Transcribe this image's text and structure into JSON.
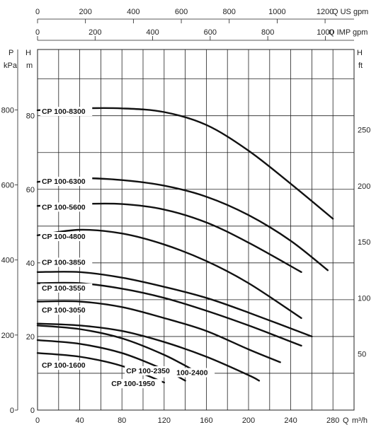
{
  "chart_data": {
    "type": "line",
    "x_axis": {
      "label": "Q m³/h",
      "ticks": [
        0,
        40,
        80,
        120,
        160,
        200,
        240,
        280
      ],
      "range": [
        0,
        300
      ]
    },
    "top_axis_us": {
      "label": "Q US gpm",
      "ticks": [
        0,
        200,
        400,
        600,
        800,
        1000,
        1200
      ]
    },
    "top_axis_imp": {
      "label": "Q IMP gpm",
      "ticks": [
        0,
        200,
        400,
        600,
        800,
        1000
      ]
    },
    "y_axis_m": {
      "label": "H m",
      "unit": "m",
      "ticks": [
        0,
        20,
        40,
        60,
        80
      ],
      "range": [
        0,
        98
      ]
    },
    "y_axis_kpa": {
      "label": "P kPa",
      "unit": "kPa",
      "ticks": [
        0,
        200,
        400,
        600,
        800
      ]
    },
    "y_axis_ft": {
      "label": "H ft",
      "unit": "ft",
      "ticks": [
        50,
        100,
        150,
        200,
        250
      ]
    },
    "series": [
      {
        "name": "CP 100-8300",
        "x": [
          0,
          40,
          80,
          120,
          160,
          200,
          240,
          280
        ],
        "y": [
          81.5,
          82,
          82,
          81,
          77.5,
          70.5,
          61.5,
          52
        ]
      },
      {
        "name": "CP 100-6300",
        "x": [
          0,
          40,
          80,
          120,
          160,
          200,
          240,
          275
        ],
        "y": [
          62,
          63,
          62.5,
          61,
          58,
          53,
          46,
          38
        ]
      },
      {
        "name": "CP 100-5600",
        "x": [
          0,
          40,
          80,
          120,
          160,
          200,
          250
        ],
        "y": [
          55.5,
          56,
          56,
          54.5,
          51,
          45.5,
          37.5
        ]
      },
      {
        "name": "CP 100-4800",
        "x": [
          0,
          40,
          80,
          120,
          160,
          200,
          250
        ],
        "y": [
          47.5,
          49,
          48,
          45,
          40.5,
          34.5,
          25
        ]
      },
      {
        "name": "CP 100-3850",
        "x": [
          0,
          40,
          80,
          120,
          160,
          200,
          260
        ],
        "y": [
          37.5,
          37.5,
          36,
          33.5,
          30.5,
          26.5,
          20
        ]
      },
      {
        "name": "CP 100-3550",
        "x": [
          0,
          40,
          80,
          120,
          160,
          200,
          250
        ],
        "y": [
          34.5,
          34.5,
          33,
          30.5,
          27,
          23,
          17.5
        ]
      },
      {
        "name": "CP 100-3050",
        "x": [
          0,
          40,
          80,
          120,
          160,
          200,
          230
        ],
        "y": [
          29.5,
          29.5,
          28,
          25,
          21.5,
          16.5,
          13
        ]
      },
      {
        "name": "CP 100-2400",
        "x": [
          0,
          40,
          80,
          120,
          160,
          200,
          210
        ],
        "y": [
          23.5,
          23,
          21.5,
          18.5,
          14.5,
          9.5,
          8
        ]
      },
      {
        "name": "CP 100-2350",
        "x": [
          0,
          40,
          80,
          120,
          150
        ],
        "y": [
          23,
          22,
          19.5,
          15,
          10.5
        ]
      },
      {
        "name": "CP 100-1950",
        "x": [
          0,
          40,
          80,
          120,
          140
        ],
        "y": [
          19,
          18,
          15.5,
          11,
          8
        ]
      },
      {
        "name": "CP 100-1600",
        "x": [
          0,
          40,
          80,
          120
        ],
        "y": [
          15.5,
          14.5,
          12,
          7.5
        ]
      }
    ]
  }
}
